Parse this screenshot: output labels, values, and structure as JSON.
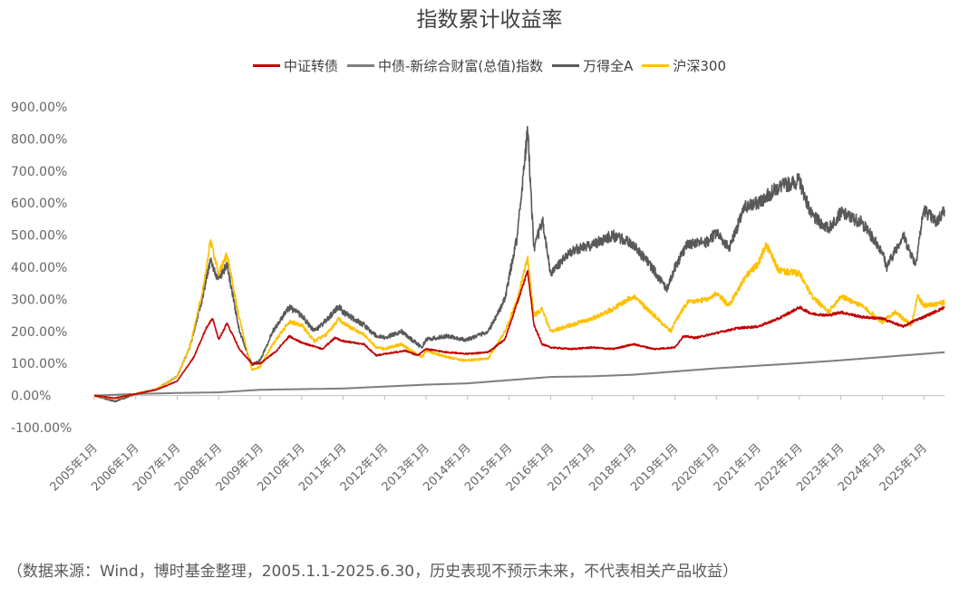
{
  "chart_data": {
    "type": "line",
    "title": "指数累计收益率",
    "xlabel": "",
    "ylabel": "",
    "ylim": [
      -100,
      900
    ],
    "y_ticks": [
      "900.00%",
      "800.00%",
      "700.00%",
      "600.00%",
      "500.00%",
      "400.00%",
      "300.00%",
      "200.00%",
      "100.00%",
      "0.00%",
      "-100.00%"
    ],
    "x_ticks": [
      "2005年1月",
      "2006年1月",
      "2007年1月",
      "2008年1月",
      "2009年1月",
      "2010年1月",
      "2011年1月",
      "2012年1月",
      "2013年1月",
      "2014年1月",
      "2015年1月",
      "2016年1月",
      "2017年1月",
      "2018年1月",
      "2019年1月",
      "2020年1月",
      "2021年1月",
      "2022年1月",
      "2023年1月",
      "2024年1月",
      "2025年1月"
    ],
    "legend_position": "top",
    "grid": false,
    "series": [
      {
        "name": "中证转债",
        "color": "#C00000",
        "points": [
          [
            2005.0,
            0
          ],
          [
            2005.5,
            -8
          ],
          [
            2006.0,
            5
          ],
          [
            2006.5,
            18
          ],
          [
            2007.0,
            45
          ],
          [
            2007.4,
            120
          ],
          [
            2007.7,
            210
          ],
          [
            2007.85,
            240
          ],
          [
            2008.0,
            175
          ],
          [
            2008.2,
            225
          ],
          [
            2008.5,
            145
          ],
          [
            2008.8,
            100
          ],
          [
            2009.0,
            100
          ],
          [
            2009.4,
            140
          ],
          [
            2009.7,
            185
          ],
          [
            2010.0,
            165
          ],
          [
            2010.5,
            145
          ],
          [
            2010.8,
            180
          ],
          [
            2011.0,
            170
          ],
          [
            2011.5,
            160
          ],
          [
            2011.8,
            125
          ],
          [
            2012.0,
            130
          ],
          [
            2012.5,
            140
          ],
          [
            2012.8,
            125
          ],
          [
            2013.0,
            145
          ],
          [
            2013.5,
            135
          ],
          [
            2014.0,
            130
          ],
          [
            2014.5,
            135
          ],
          [
            2014.9,
            175
          ],
          [
            2015.2,
            290
          ],
          [
            2015.45,
            390
          ],
          [
            2015.6,
            220
          ],
          [
            2015.8,
            160
          ],
          [
            2016.0,
            150
          ],
          [
            2016.5,
            145
          ],
          [
            2017.0,
            150
          ],
          [
            2017.5,
            145
          ],
          [
            2018.0,
            160
          ],
          [
            2018.5,
            145
          ],
          [
            2019.0,
            150
          ],
          [
            2019.2,
            185
          ],
          [
            2019.5,
            180
          ],
          [
            2020.0,
            195
          ],
          [
            2020.5,
            210
          ],
          [
            2021.0,
            215
          ],
          [
            2021.5,
            240
          ],
          [
            2022.0,
            275
          ],
          [
            2022.3,
            255
          ],
          [
            2022.7,
            250
          ],
          [
            2023.0,
            260
          ],
          [
            2023.5,
            245
          ],
          [
            2024.0,
            240
          ],
          [
            2024.5,
            215
          ],
          [
            2024.8,
            235
          ],
          [
            2025.0,
            245
          ],
          [
            2025.5,
            275
          ]
        ]
      },
      {
        "name": "中债-新综合财富(总值)指数",
        "color": "#7F7F7F",
        "points": [
          [
            2005.0,
            0
          ],
          [
            2006.0,
            5
          ],
          [
            2007.0,
            8
          ],
          [
            2008.0,
            10
          ],
          [
            2009.0,
            18
          ],
          [
            2010.0,
            20
          ],
          [
            2011.0,
            22
          ],
          [
            2012.0,
            28
          ],
          [
            2013.0,
            34
          ],
          [
            2014.0,
            38
          ],
          [
            2015.0,
            48
          ],
          [
            2016.0,
            58
          ],
          [
            2017.0,
            60
          ],
          [
            2018.0,
            65
          ],
          [
            2019.0,
            75
          ],
          [
            2020.0,
            85
          ],
          [
            2021.0,
            93
          ],
          [
            2022.0,
            101
          ],
          [
            2023.0,
            110
          ],
          [
            2024.0,
            120
          ],
          [
            2025.0,
            130
          ],
          [
            2025.5,
            135
          ]
        ]
      },
      {
        "name": "万得全A",
        "color": "#595959",
        "points": [
          [
            2005.0,
            0
          ],
          [
            2005.5,
            -18
          ],
          [
            2006.0,
            5
          ],
          [
            2006.5,
            20
          ],
          [
            2007.0,
            60
          ],
          [
            2007.3,
            150
          ],
          [
            2007.6,
            300
          ],
          [
            2007.8,
            420
          ],
          [
            2008.0,
            360
          ],
          [
            2008.2,
            410
          ],
          [
            2008.5,
            200
          ],
          [
            2008.8,
            95
          ],
          [
            2009.0,
            110
          ],
          [
            2009.3,
            200
          ],
          [
            2009.7,
            275
          ],
          [
            2010.0,
            250
          ],
          [
            2010.3,
            200
          ],
          [
            2010.6,
            235
          ],
          [
            2010.9,
            280
          ],
          [
            2011.0,
            260
          ],
          [
            2011.5,
            220
          ],
          [
            2011.8,
            185
          ],
          [
            2012.0,
            180
          ],
          [
            2012.4,
            200
          ],
          [
            2012.9,
            150
          ],
          [
            2013.0,
            175
          ],
          [
            2013.5,
            185
          ],
          [
            2013.9,
            175
          ],
          [
            2014.0,
            175
          ],
          [
            2014.5,
            200
          ],
          [
            2014.9,
            300
          ],
          [
            2015.2,
            500
          ],
          [
            2015.45,
            830
          ],
          [
            2015.6,
            450
          ],
          [
            2015.8,
            550
          ],
          [
            2016.0,
            380
          ],
          [
            2016.5,
            450
          ],
          [
            2017.0,
            470
          ],
          [
            2017.5,
            500
          ],
          [
            2018.0,
            470
          ],
          [
            2018.5,
            390
          ],
          [
            2018.8,
            330
          ],
          [
            2019.0,
            400
          ],
          [
            2019.3,
            470
          ],
          [
            2019.8,
            480
          ],
          [
            2020.0,
            510
          ],
          [
            2020.3,
            460
          ],
          [
            2020.7,
            590
          ],
          [
            2021.0,
            600
          ],
          [
            2021.5,
            650
          ],
          [
            2022.0,
            670
          ],
          [
            2022.3,
            560
          ],
          [
            2022.7,
            520
          ],
          [
            2023.0,
            570
          ],
          [
            2023.5,
            540
          ],
          [
            2024.0,
            450
          ],
          [
            2024.1,
            400
          ],
          [
            2024.5,
            500
          ],
          [
            2024.8,
            410
          ],
          [
            2025.0,
            580
          ],
          [
            2025.3,
            540
          ],
          [
            2025.5,
            580
          ]
        ]
      },
      {
        "name": "沪深300",
        "color": "#FFC000",
        "points": [
          [
            2005.0,
            0
          ],
          [
            2005.5,
            -10
          ],
          [
            2006.0,
            5
          ],
          [
            2006.5,
            20
          ],
          [
            2007.0,
            60
          ],
          [
            2007.3,
            150
          ],
          [
            2007.6,
            320
          ],
          [
            2007.8,
            480
          ],
          [
            2008.0,
            380
          ],
          [
            2008.2,
            440
          ],
          [
            2008.5,
            240
          ],
          [
            2008.8,
            80
          ],
          [
            2009.0,
            90
          ],
          [
            2009.3,
            160
          ],
          [
            2009.7,
            230
          ],
          [
            2010.0,
            220
          ],
          [
            2010.3,
            170
          ],
          [
            2010.6,
            190
          ],
          [
            2010.9,
            240
          ],
          [
            2011.0,
            225
          ],
          [
            2011.5,
            190
          ],
          [
            2011.8,
            150
          ],
          [
            2012.0,
            145
          ],
          [
            2012.4,
            160
          ],
          [
            2012.9,
            120
          ],
          [
            2013.0,
            140
          ],
          [
            2013.5,
            120
          ],
          [
            2013.9,
            110
          ],
          [
            2014.0,
            110
          ],
          [
            2014.5,
            115
          ],
          [
            2014.9,
            200
          ],
          [
            2015.2,
            300
          ],
          [
            2015.45,
            430
          ],
          [
            2015.6,
            250
          ],
          [
            2015.8,
            270
          ],
          [
            2016.0,
            200
          ],
          [
            2016.5,
            220
          ],
          [
            2017.0,
            240
          ],
          [
            2017.5,
            270
          ],
          [
            2018.0,
            310
          ],
          [
            2018.5,
            250
          ],
          [
            2018.9,
            200
          ],
          [
            2019.0,
            230
          ],
          [
            2019.3,
            290
          ],
          [
            2019.8,
            300
          ],
          [
            2020.0,
            320
          ],
          [
            2020.3,
            280
          ],
          [
            2020.7,
            370
          ],
          [
            2021.0,
            410
          ],
          [
            2021.2,
            470
          ],
          [
            2021.5,
            390
          ],
          [
            2022.0,
            380
          ],
          [
            2022.3,
            310
          ],
          [
            2022.7,
            260
          ],
          [
            2023.0,
            310
          ],
          [
            2023.5,
            280
          ],
          [
            2024.0,
            230
          ],
          [
            2024.3,
            260
          ],
          [
            2024.7,
            220
          ],
          [
            2024.85,
            310
          ],
          [
            2025.0,
            280
          ],
          [
            2025.5,
            290
          ]
        ]
      }
    ]
  },
  "source_note": "（数据来源：Wind，博时基金整理，2005.1.1-2025.6.30，历史表现不预示未来，不代表相关产品收益）"
}
